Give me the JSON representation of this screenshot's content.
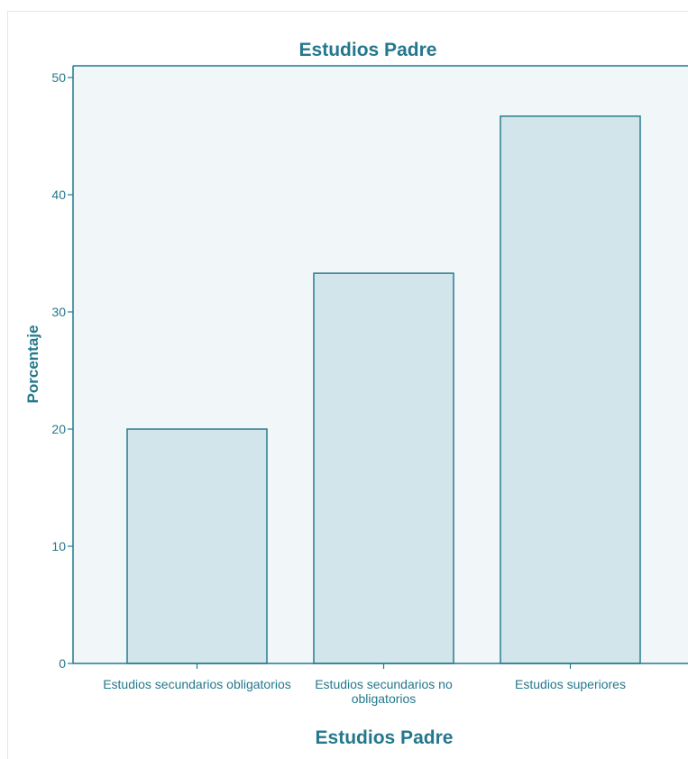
{
  "colors": {
    "axis": "#1f7a8c",
    "text": "#24788c",
    "plot_bg": "#f1f6f8",
    "bar_fill": "#d2e5eb",
    "bar_stroke": "#2a7c8f"
  },
  "chart_data": {
    "type": "bar",
    "title": "Estudios Padre",
    "xlabel": "Estudios Padre",
    "ylabel": "Porcentaje",
    "categories": [
      [
        "Estudios secundarios obligatorios"
      ],
      [
        "Estudios secundarios no",
        "obligatorios"
      ],
      [
        "Estudios superiores"
      ]
    ],
    "values": [
      20.0,
      33.3,
      46.7
    ],
    "ylim": [
      0,
      51
    ],
    "yticks": [
      0,
      10,
      20,
      30,
      40,
      50
    ],
    "grid": false
  }
}
